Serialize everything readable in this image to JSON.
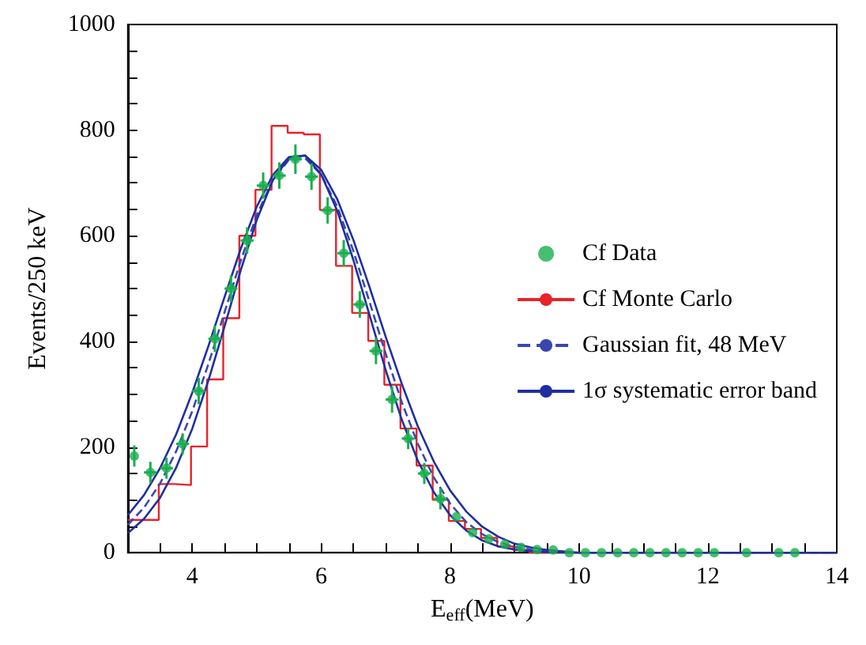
{
  "chart_data": {
    "type": "line",
    "xlabel": "E$_{eff}$(MeV)",
    "ylabel": "Events/250 keV",
    "xlim": [
      3,
      14
    ],
    "ylim": [
      0,
      1000
    ],
    "xticks": [
      {
        "value": 3,
        "label": null
      },
      {
        "value": 3.5,
        "label": null
      },
      4,
      {
        "value": 4.5,
        "label": null
      },
      {
        "value": 5,
        "label": null
      },
      {
        "value": 5.5,
        "label": null
      },
      6,
      {
        "value": 6.5,
        "label": null
      },
      {
        "value": 7,
        "label": null
      },
      {
        "value": 7.5,
        "label": null
      },
      8,
      {
        "value": 8.5,
        "label": null
      },
      {
        "value": 9,
        "label": null
      },
      {
        "value": 9.5,
        "label": null
      },
      10,
      {
        "value": 10.5,
        "label": null
      },
      {
        "value": 11,
        "label": null
      },
      {
        "value": 11.5,
        "label": null
      },
      12,
      {
        "value": 12.5,
        "label": null
      },
      {
        "value": 13,
        "label": null
      },
      {
        "value": 13.5,
        "label": null
      },
      14
    ],
    "yticks": [
      0,
      {
        "value": 50,
        "label": null
      },
      {
        "value": 100,
        "label": null
      },
      {
        "value": 150,
        "label": null
      },
      200,
      {
        "value": 250,
        "label": null
      },
      {
        "value": 300,
        "label": null
      },
      {
        "value": 350,
        "label": null
      },
      400,
      {
        "value": 450,
        "label": null
      },
      {
        "value": 500,
        "label": null
      },
      {
        "value": 550,
        "label": null
      },
      600,
      {
        "value": 650,
        "label": null
      },
      {
        "value": 700,
        "label": null
      },
      {
        "value": 750,
        "label": null
      },
      800,
      {
        "value": 850,
        "label": null
      },
      {
        "value": 900,
        "label": null
      },
      {
        "value": 950,
        "label": null
      },
      1000
    ],
    "grid": false,
    "legend": "right",
    "series": [
      {
        "name": "Cf Data",
        "type": "scatter",
        "marker": "circle",
        "color": "#1aae4f",
        "x": [
          3.1,
          3.35,
          3.6,
          3.85,
          4.1,
          4.35,
          4.6,
          4.85,
          5.1,
          5.35,
          5.6,
          5.85,
          6.1,
          6.35,
          6.6,
          6.85,
          7.1,
          7.35,
          7.6,
          7.85,
          8.1,
          8.35,
          8.6,
          8.85,
          9.1,
          9.35,
          9.6,
          9.85,
          10.1,
          10.35,
          10.6,
          10.85,
          11.1,
          11.35,
          11.6,
          11.85,
          12.1,
          12.6,
          13.1,
          13.35
        ],
        "values": [
          183,
          152,
          160,
          206,
          306,
          405,
          500,
          591,
          695,
          714,
          745,
          712,
          648,
          567,
          470,
          382,
          290,
          216,
          150,
          102,
          68,
          38,
          26,
          16,
          10,
          6,
          5,
          0,
          0,
          0,
          0,
          0,
          0,
          0,
          0,
          0,
          0,
          0,
          0,
          0
        ],
        "errors": [
          20,
          20,
          20,
          20,
          25,
          25,
          25,
          25,
          25,
          25,
          28,
          25,
          25,
          25,
          25,
          25,
          25,
          20,
          20,
          20,
          null,
          null,
          null,
          null,
          null,
          null,
          null,
          null,
          null,
          null,
          null,
          null,
          null,
          null,
          null,
          null,
          null,
          null,
          null,
          null
        ],
        "xerrors": [
          null,
          0.1,
          0.1,
          0.1,
          0.1,
          0.1,
          0.1,
          0.1,
          0.1,
          0.1,
          0.1,
          0.1,
          0.1,
          0.1,
          0.1,
          0.1,
          0.1,
          0.1,
          0.1,
          0.1,
          null,
          null,
          null,
          null,
          null,
          null,
          null,
          null,
          null,
          null,
          null,
          null,
          null,
          null,
          null,
          null,
          null,
          null,
          null,
          null
        ]
      },
      {
        "name": "Cf Monte Carlo",
        "type": "step",
        "color": "#e8232a",
        "x": [
          3.0,
          3.23,
          3.48,
          3.73,
          3.98,
          4.23,
          4.48,
          4.73,
          4.98,
          5.23,
          5.48,
          5.73,
          5.98,
          6.23,
          6.48,
          6.73,
          6.98,
          7.23,
          7.48,
          7.73,
          7.98,
          8.23,
          8.48,
          8.73,
          8.98,
          9.23,
          14
        ],
        "values": [
          62,
          62,
          130,
          128,
          201,
          328,
          444,
          600,
          687,
          808,
          795,
          792,
          649,
          543,
          454,
          401,
          318,
          235,
          165,
          100,
          60,
          45,
          28,
          12,
          5,
          0,
          0
        ]
      },
      {
        "name": "Gaussian fit, 48 MeV",
        "type": "line",
        "line_style": "dashed",
        "color": "#3848b0",
        "x": [
          3,
          3.25,
          3.5,
          3.75,
          4,
          4.25,
          4.5,
          4.75,
          5,
          5.25,
          5.5,
          5.75,
          6,
          6.25,
          6.5,
          6.75,
          7,
          7.25,
          7.5,
          7.75,
          8,
          8.25,
          8.5,
          8.75,
          9,
          9.25,
          9.5,
          10,
          14
        ],
        "values": [
          53,
          85,
          131,
          192,
          268,
          357,
          455,
          552,
          639,
          706,
          744,
          747,
          716,
          655,
          571,
          475,
          377,
          285,
          206,
          142,
          93,
          58,
          35,
          20,
          11,
          6,
          3,
          0,
          0
        ]
      },
      {
        "name": "1σ systematic error band",
        "type": "line",
        "line_style": "solid",
        "color": "#1f2fa0",
        "x": [
          3,
          3.25,
          3.5,
          3.75,
          4,
          4.25,
          4.5,
          4.75,
          5,
          5.25,
          5.5,
          5.75,
          6,
          6.25,
          6.5,
          6.75,
          7,
          7.25,
          7.5,
          7.75,
          8,
          8.25,
          8.5,
          8.75,
          9,
          9.25,
          9.5,
          10,
          14
        ],
        "values": [
          71,
          109,
          160,
          224,
          303,
          391,
          484,
          575,
          655,
          715,
          749,
          752,
          725,
          669,
          592,
          503,
          409,
          320,
          239,
          172,
          118,
          78,
          49,
          30,
          17,
          10,
          5,
          0,
          0
        ]
      },
      {
        "line_style": "solid",
        "color": "#1f2fa0",
        "x": [
          3,
          3.25,
          3.5,
          3.75,
          4,
          4.25,
          4.5,
          4.75,
          5,
          5.25,
          5.5,
          5.75,
          6,
          6.25,
          6.5,
          6.75,
          7,
          7.25,
          7.5,
          7.75,
          8,
          8.25,
          8.5,
          8.75,
          9,
          9.25,
          9.5,
          10,
          14
        ],
        "values": [
          37,
          64,
          104,
          161,
          235,
          326,
          428,
          534,
          630,
          705,
          748,
          752,
          716,
          647,
          554,
          450,
          346,
          252,
          174,
          114,
          71,
          42,
          23,
          12,
          6,
          3,
          1,
          0,
          0
        ]
      }
    ]
  }
}
